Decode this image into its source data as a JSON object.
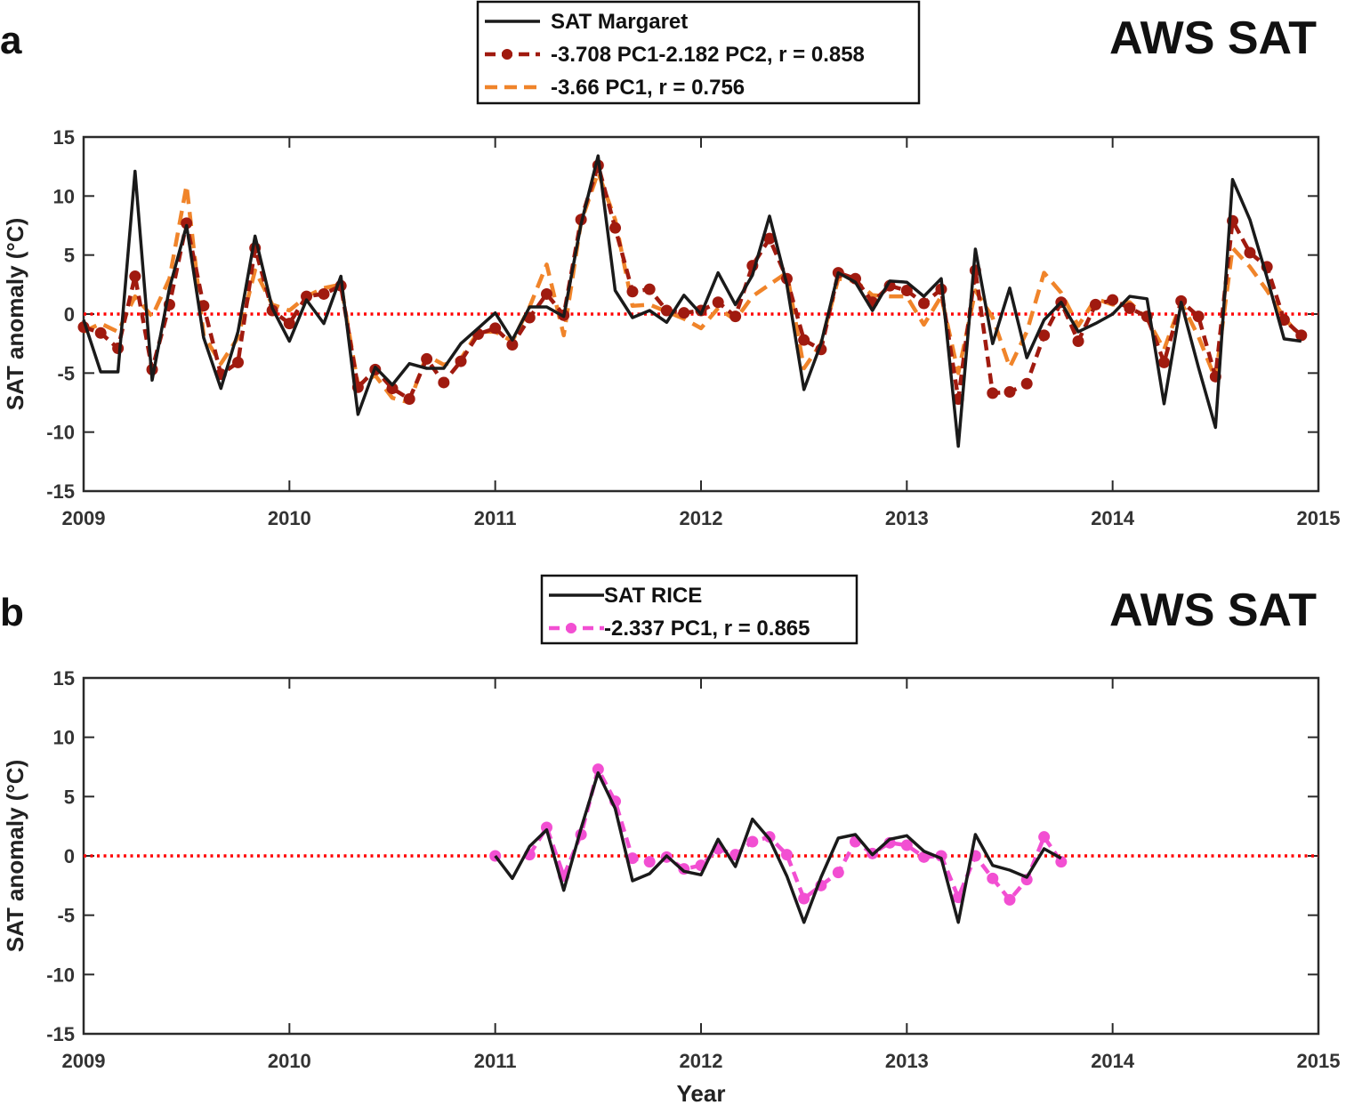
{
  "chart_data": [
    {
      "type": "line",
      "panel_label": "a",
      "title": "AWS SAT",
      "xlabel": "",
      "ylabel": "SAT anomaly (°C)",
      "xlim": [
        2009,
        2015
      ],
      "ylim": [
        -15,
        15
      ],
      "xticks": [
        "2009",
        "2010",
        "2011",
        "2012",
        "2013",
        "2014",
        "2015"
      ],
      "yticks": [
        "-15",
        "-10",
        "-5",
        "0",
        "5",
        "10",
        "15"
      ],
      "zero_line": {
        "y": 0,
        "color": "#ff0000",
        "style": "dotted"
      },
      "legend_position": "top-center",
      "series": [
        {
          "name": "SAT Margaret",
          "color": "#1a1a1a",
          "style": "solid",
          "marker": "none",
          "x": [
            2009.0,
            2009.083,
            2009.167,
            2009.25,
            2009.333,
            2009.417,
            2009.5,
            2009.583,
            2009.667,
            2009.75,
            2009.833,
            2009.917,
            2010.0,
            2010.083,
            2010.167,
            2010.25,
            2010.333,
            2010.417,
            2010.5,
            2010.583,
            2010.667,
            2010.75,
            2010.833,
            2010.917,
            2011.0,
            2011.083,
            2011.167,
            2011.25,
            2011.333,
            2011.417,
            2011.5,
            2011.583,
            2011.667,
            2011.75,
            2011.833,
            2011.917,
            2012.0,
            2012.083,
            2012.167,
            2012.25,
            2012.333,
            2012.417,
            2012.5,
            2012.583,
            2012.667,
            2012.75,
            2012.833,
            2012.917,
            2013.0,
            2013.083,
            2013.167,
            2013.25,
            2013.333,
            2013.417,
            2013.5,
            2013.583,
            2013.667,
            2013.75,
            2013.833,
            2013.917,
            2014.0,
            2014.083,
            2014.167,
            2014.25,
            2014.333,
            2014.417,
            2014.5,
            2014.583,
            2014.667,
            2014.75,
            2014.833,
            2014.917
          ],
          "values": [
            -0.5,
            -4.9,
            -4.9,
            12.1,
            -5.6,
            2.2,
            7.5,
            -2.0,
            -6.3,
            -1.5,
            6.6,
            0.5,
            -2.3,
            1.2,
            -0.8,
            3.2,
            -8.5,
            -4.5,
            -6.0,
            -4.2,
            -4.6,
            -4.6,
            -2.5,
            -1.2,
            0.1,
            -2.2,
            0.6,
            0.6,
            -0.2,
            7.6,
            13.4,
            2.0,
            -0.3,
            0.3,
            -0.7,
            1.6,
            0.0,
            3.5,
            0.8,
            3.3,
            8.3,
            2.5,
            -6.4,
            -2.5,
            3.5,
            2.7,
            0.3,
            2.8,
            2.7,
            1.5,
            3.0,
            -11.2,
            5.5,
            -2.5,
            2.2,
            -3.7,
            -0.5,
            1.0,
            -1.5,
            -0.8,
            0.0,
            1.5,
            1.3,
            -7.6,
            1.0,
            -4.5,
            -9.6,
            11.4,
            8.0,
            3.1,
            -2.1,
            -2.3
          ]
        },
        {
          "name": "-3.708 PC1-2.182 PC2,  r = 0.858",
          "color": "#a01a0f",
          "style": "dashed",
          "marker": "circle",
          "x": [
            2009.0,
            2009.083,
            2009.167,
            2009.25,
            2009.333,
            2009.417,
            2009.5,
            2009.583,
            2009.667,
            2009.75,
            2009.833,
            2009.917,
            2010.0,
            2010.083,
            2010.167,
            2010.25,
            2010.333,
            2010.417,
            2010.5,
            2010.583,
            2010.667,
            2010.75,
            2010.833,
            2010.917,
            2011.0,
            2011.083,
            2011.167,
            2011.25,
            2011.333,
            2011.417,
            2011.5,
            2011.583,
            2011.667,
            2011.75,
            2011.833,
            2011.917,
            2012.0,
            2012.083,
            2012.167,
            2012.25,
            2012.333,
            2012.417,
            2012.5,
            2012.583,
            2012.667,
            2012.75,
            2012.833,
            2012.917,
            2013.0,
            2013.083,
            2013.167,
            2013.25,
            2013.333,
            2013.417,
            2013.5,
            2013.583,
            2013.667,
            2013.75,
            2013.833,
            2013.917,
            2014.0,
            2014.083,
            2014.167,
            2014.25,
            2014.333,
            2014.417,
            2014.5,
            2014.583,
            2014.667,
            2014.75,
            2014.833,
            2014.917
          ],
          "values": [
            -1.1,
            -1.6,
            -2.9,
            3.2,
            -4.7,
            0.8,
            7.7,
            0.7,
            -5.1,
            -4.1,
            5.6,
            0.3,
            -0.8,
            1.5,
            1.7,
            2.4,
            -6.2,
            -4.7,
            -6.3,
            -7.2,
            -3.8,
            -5.8,
            -4.0,
            -1.7,
            -1.2,
            -2.6,
            -0.3,
            1.7,
            -0.1,
            8.0,
            12.6,
            7.3,
            1.9,
            2.1,
            0.3,
            0.1,
            0.3,
            1.0,
            -0.2,
            4.1,
            6.4,
            3.0,
            -2.2,
            -3.0,
            3.5,
            3.0,
            1.0,
            2.4,
            2.0,
            0.9,
            2.1,
            -7.2,
            3.7,
            -6.7,
            -6.6,
            -5.9,
            -1.8,
            1.0,
            -2.3,
            0.8,
            1.2,
            0.5,
            -0.2,
            -4.1,
            1.1,
            -0.2,
            -5.3,
            7.9,
            5.2,
            4.0,
            -0.5,
            -1.8
          ]
        },
        {
          "name": "-3.66 PC1,  r = 0.756",
          "color": "#f0842a",
          "style": "dashed",
          "marker": "none",
          "x": [
            2009.0,
            2009.083,
            2009.167,
            2009.25,
            2009.333,
            2009.417,
            2009.5,
            2009.583,
            2009.667,
            2009.75,
            2009.833,
            2009.917,
            2010.0,
            2010.083,
            2010.167,
            2010.25,
            2010.333,
            2010.417,
            2010.5,
            2010.583,
            2010.667,
            2010.75,
            2010.833,
            2010.917,
            2011.0,
            2011.083,
            2011.167,
            2011.25,
            2011.333,
            2011.417,
            2011.5,
            2011.583,
            2011.667,
            2011.75,
            2011.833,
            2011.917,
            2012.0,
            2012.083,
            2012.167,
            2012.25,
            2012.333,
            2012.417,
            2012.5,
            2012.583,
            2012.667,
            2012.75,
            2012.833,
            2012.917,
            2013.0,
            2013.083,
            2013.167,
            2013.25,
            2013.333,
            2013.417,
            2013.5,
            2013.583,
            2013.667,
            2013.75,
            2013.833,
            2013.917,
            2014.0,
            2014.083,
            2014.167,
            2014.25,
            2014.333,
            2014.417,
            2014.5,
            2014.583,
            2014.667,
            2014.75,
            2014.833,
            2014.917
          ],
          "values": [
            -1.5,
            -0.8,
            -1.5,
            1.5,
            -0.2,
            3.0,
            10.9,
            -1.8,
            -4.2,
            -2.0,
            3.7,
            0.8,
            0.3,
            1.5,
            2.2,
            2.5,
            -6.0,
            -5.2,
            -7.1,
            -7.5,
            -3.5,
            -4.3,
            -3.8,
            -1.5,
            -1.5,
            -2.3,
            0.6,
            4.2,
            -1.8,
            7.8,
            12.0,
            8.0,
            0.7,
            0.8,
            0.2,
            -0.4,
            -1.2,
            0.5,
            -0.5,
            1.5,
            2.5,
            3.5,
            -4.6,
            -2.5,
            3.0,
            2.8,
            1.6,
            1.5,
            1.5,
            -0.9,
            1.5,
            -5.0,
            2.0,
            -0.3,
            -4.5,
            -1.5,
            3.5,
            1.8,
            -1.0,
            1.3,
            0.8,
            1.0,
            -0.4,
            -3.0,
            1.0,
            -1.9,
            -5.5,
            5.6,
            4.0,
            2.0,
            -0.3,
            -2.0
          ]
        }
      ]
    },
    {
      "type": "line",
      "panel_label": "b",
      "title": "AWS SAT",
      "xlabel": "Year",
      "ylabel": "SAT anomaly (°C)",
      "xlim": [
        2009,
        2015
      ],
      "ylim": [
        -15,
        15
      ],
      "xticks": [
        "2009",
        "2010",
        "2011",
        "2012",
        "2013",
        "2014",
        "2015"
      ],
      "yticks": [
        "-15",
        "-10",
        "-5",
        "0",
        "5",
        "10",
        "15"
      ],
      "zero_line": {
        "y": 0,
        "color": "#ff0000",
        "style": "dotted"
      },
      "legend_position": "top-center",
      "series": [
        {
          "name": "SAT RICE",
          "color": "#1a1a1a",
          "style": "solid",
          "marker": "none",
          "x": [
            2011.0,
            2011.083,
            2011.167,
            2011.25,
            2011.333,
            2011.417,
            2011.5,
            2011.583,
            2011.667,
            2011.75,
            2011.833,
            2011.917,
            2012.0,
            2012.083,
            2012.167,
            2012.25,
            2012.333,
            2012.417,
            2012.5,
            2012.583,
            2012.667,
            2012.75,
            2012.833,
            2012.917,
            2013.0,
            2013.083,
            2013.167,
            2013.25,
            2013.333,
            2013.417,
            2013.5,
            2013.583,
            2013.667,
            2013.75
          ],
          "values": [
            0.0,
            -1.9,
            0.8,
            2.2,
            -2.9,
            2.3,
            7.0,
            4.0,
            -2.1,
            -1.5,
            0.0,
            -1.3,
            -1.6,
            1.4,
            -0.9,
            3.1,
            1.4,
            -1.7,
            -5.6,
            -1.8,
            1.5,
            1.8,
            0.1,
            1.4,
            1.7,
            0.4,
            -0.2,
            -5.6,
            1.8,
            -0.8,
            -1.2,
            -1.8,
            0.6,
            -0.2
          ]
        },
        {
          "name": "-2.337 PC1,  r = 0.865",
          "color": "#f24fd2",
          "style": "dashed",
          "marker": "circle",
          "x": [
            2011.0,
            2011.083,
            2011.167,
            2011.25,
            2011.333,
            2011.417,
            2011.5,
            2011.583,
            2011.667,
            2011.75,
            2011.833,
            2011.917,
            2012.0,
            2012.083,
            2012.167,
            2012.25,
            2012.333,
            2012.417,
            2012.5,
            2012.583,
            2012.667,
            2012.75,
            2012.833,
            2012.917,
            2013.0,
            2013.083,
            2013.167,
            2013.25,
            2013.333,
            2013.417,
            2013.5,
            2013.583,
            2013.667,
            2013.75
          ],
          "values": [
            0.0,
            null,
            0.1,
            2.4,
            -1.7,
            1.8,
            7.3,
            4.6,
            -0.2,
            -0.5,
            -0.1,
            -1.1,
            -0.8,
            0.6,
            0.1,
            1.2,
            1.6,
            0.1,
            -3.6,
            -2.5,
            -1.4,
            1.2,
            0.2,
            1.1,
            0.9,
            -0.1,
            0.0,
            -3.5,
            0.0,
            -1.9,
            -3.7,
            -2.0,
            1.6,
            -0.5
          ]
        }
      ]
    }
  ]
}
